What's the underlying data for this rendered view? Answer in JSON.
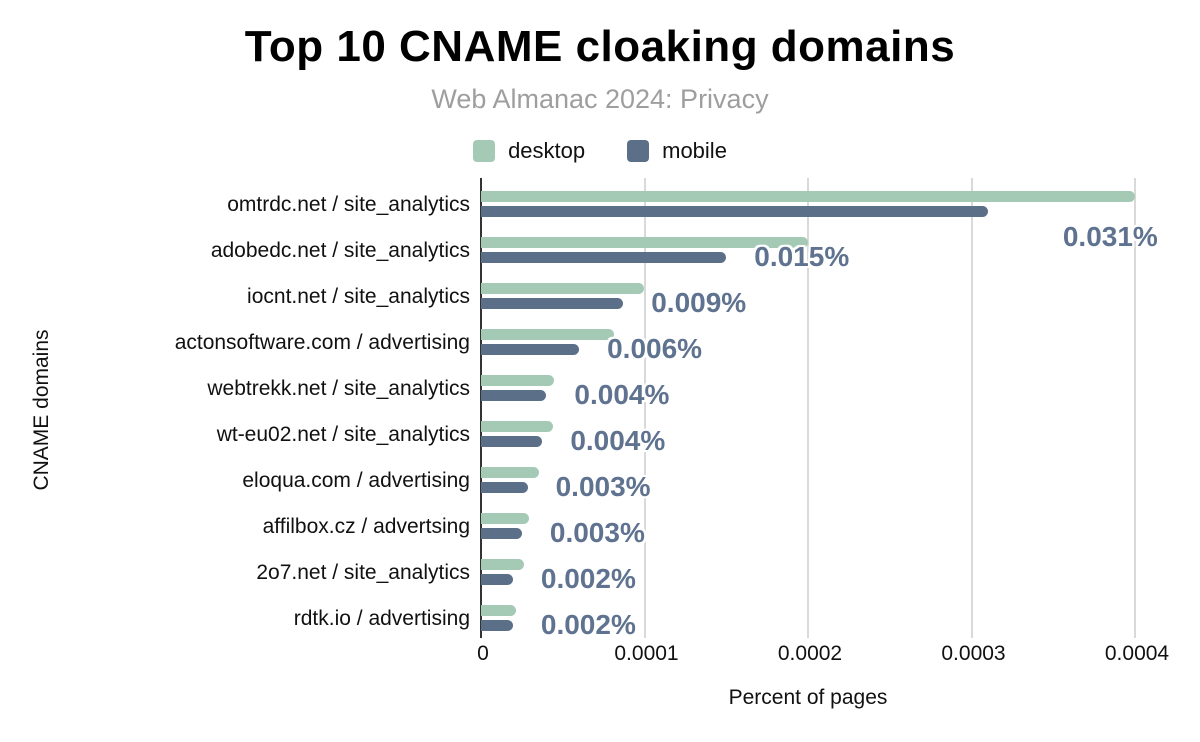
{
  "title": "Top 10 CNAME cloaking domains",
  "subtitle": "Web Almanac 2024: Privacy",
  "legend": {
    "items": [
      {
        "label": "desktop",
        "color": "#a4cab6"
      },
      {
        "label": "mobile",
        "color": "#5c6f88"
      }
    ]
  },
  "colors": {
    "desktop_bar": "#a4cab6",
    "mobile_bar": "#5c6f88",
    "value_label": "#5f7390",
    "gridline": "#d9d9d9",
    "axis_line": "#333333",
    "subtitle_text": "#9e9e9e",
    "title_text": "#000000"
  },
  "chart_data": {
    "type": "bar",
    "orientation": "horizontal",
    "title": "Top 10 CNAME cloaking domains",
    "subtitle": "Web Almanac 2024: Privacy",
    "xlabel": "Percent of pages",
    "ylabel": "CNAME domains",
    "grid": true,
    "legend_position": "top",
    "xlim": [
      0,
      0.0004
    ],
    "x_ticks": [
      "0",
      "0.0001",
      "0.0002",
      "0.0003",
      "0.0004"
    ],
    "categories": [
      "omtrdc.net / site_analytics",
      "adobedc.net / site_analytics",
      "iocnt.net / site_analytics",
      "actonsoftware.com / advertising",
      "webtrekk.net / site_analytics",
      "wt-eu02.net / site_analytics",
      "eloqua.com / advertising",
      "affilbox.cz / advertsing",
      "2o7.net / site_analytics",
      "rdtk.io / advertising"
    ],
    "series": [
      {
        "name": "desktop",
        "values": [
          0.0004,
          0.0002,
          9.95e-05,
          8.15e-05,
          4.47e-05,
          4.4e-05,
          3.55e-05,
          2.95e-05,
          2.6e-05,
          2.15e-05
        ]
      },
      {
        "name": "mobile",
        "values": [
          0.00031,
          0.00015,
          8.7e-05,
          6e-05,
          4e-05,
          3.75e-05,
          2.85e-05,
          2.5e-05,
          1.95e-05,
          1.95e-05
        ]
      }
    ],
    "annotations": [
      "0.031%",
      "0.015%",
      "0.009%",
      "0.006%",
      "0.004%",
      "0.004%",
      "0.003%",
      "0.003%",
      "0.002%",
      "0.002%"
    ],
    "annotation_series": "mobile"
  }
}
